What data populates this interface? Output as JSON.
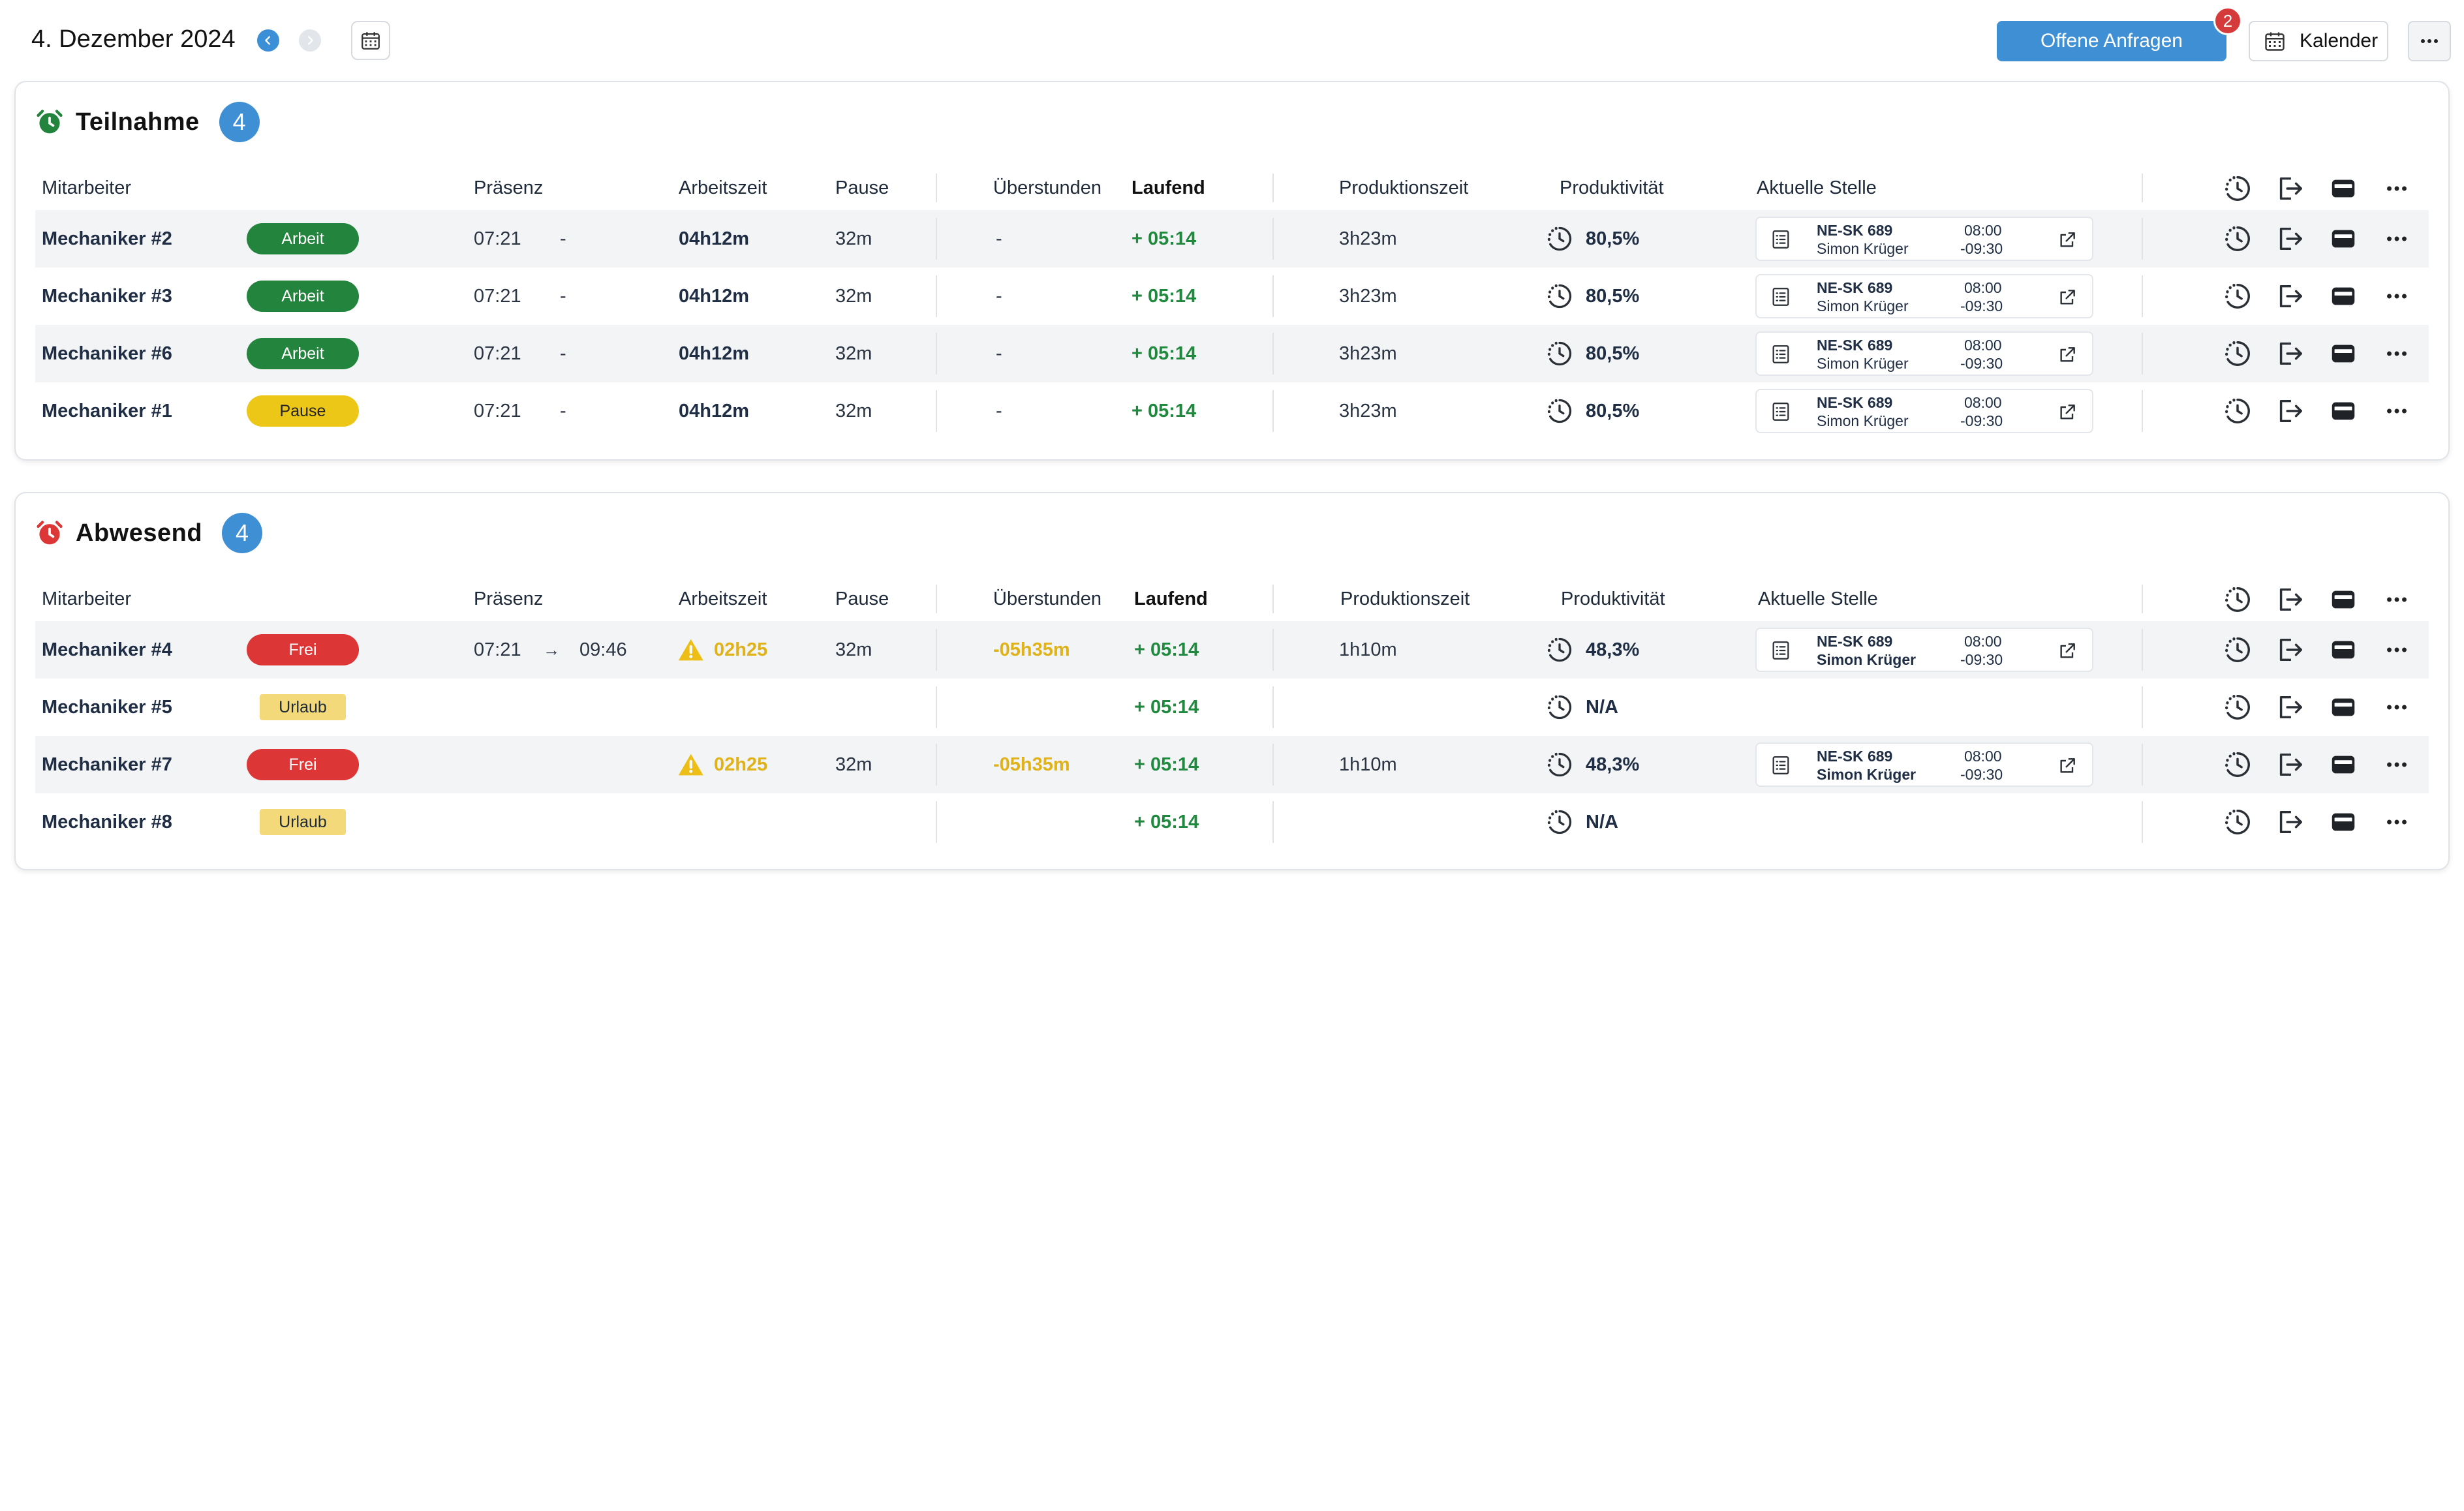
{
  "header": {
    "date_title": "4. Dezember 2024",
    "offene_anfragen_label": "Offene Anfragen",
    "offene_anfragen_count": "2",
    "kalender_label": "Kalender"
  },
  "columns": {
    "mitarbeiter": "Mitarbeiter",
    "praesenz": "Präsenz",
    "arbeitszeit": "Arbeitszeit",
    "pause": "Pause",
    "ueberstunden": "Überstunden",
    "laufend": "Laufend",
    "produktionszeit": "Produktionszeit",
    "produktivitaet": "Produktivität",
    "aktuelle_stelle": "Aktuelle Stelle"
  },
  "teilnahme": {
    "title": "Teilnahme",
    "count": "4",
    "rows": [
      {
        "name": "Mechaniker #2",
        "status": "Arbeit",
        "praesenz_start": "07:21",
        "praesenz_end": "-",
        "arbeitszeit": "04h12m",
        "pause": "32m",
        "ueberstunden": "-",
        "laufend": "+ 05:14",
        "produktionszeit": "3h23m",
        "produktivitaet": "80,5%",
        "stelle_code": "NE-SK 689",
        "stelle_person": "Simon Krüger",
        "stelle_from": "08:00",
        "stelle_to": "-09:30"
      },
      {
        "name": "Mechaniker #3",
        "status": "Arbeit",
        "praesenz_start": "07:21",
        "praesenz_end": "-",
        "arbeitszeit": "04h12m",
        "pause": "32m",
        "ueberstunden": "-",
        "laufend": "+ 05:14",
        "produktionszeit": "3h23m",
        "produktivitaet": "80,5%",
        "stelle_code": "NE-SK 689",
        "stelle_person": "Simon Krüger",
        "stelle_from": "08:00",
        "stelle_to": "-09:30"
      },
      {
        "name": "Mechaniker #6",
        "status": "Arbeit",
        "praesenz_start": "07:21",
        "praesenz_end": "-",
        "arbeitszeit": "04h12m",
        "pause": "32m",
        "ueberstunden": "-",
        "laufend": "+ 05:14",
        "produktionszeit": "3h23m",
        "produktivitaet": "80,5%",
        "stelle_code": "NE-SK 689",
        "stelle_person": "Simon Krüger",
        "stelle_from": "08:00",
        "stelle_to": "-09:30"
      },
      {
        "name": "Mechaniker #1",
        "status": "Pause",
        "praesenz_start": "07:21",
        "praesenz_end": "-",
        "arbeitszeit": "04h12m",
        "pause": "32m",
        "ueberstunden": "-",
        "laufend": "+ 05:14",
        "produktionszeit": "3h23m",
        "produktivitaet": "80,5%",
        "stelle_code": "NE-SK 689",
        "stelle_person": "Simon Krüger",
        "stelle_from": "08:00",
        "stelle_to": "-09:30"
      }
    ]
  },
  "abwesend": {
    "title": "Abwesend",
    "count": "4",
    "rows": [
      {
        "name": "Mechaniker #4",
        "status": "Frei",
        "praesenz_start": "07:21",
        "praesenz_end": "09:46",
        "arbeitszeit": "02h25",
        "pause": "32m",
        "ueberstunden": "-05h35m",
        "laufend": "+ 05:14",
        "produktionszeit": "1h10m",
        "produktivitaet": "48,3%",
        "stelle_code": "NE-SK 689",
        "stelle_person": "Simon Krüger",
        "stelle_from": "08:00",
        "stelle_to": "-09:30"
      },
      {
        "name": "Mechaniker #5",
        "status": "Urlaub",
        "laufend": "+ 05:14",
        "produktivitaet": "N/A"
      },
      {
        "name": "Mechaniker #7",
        "status": "Frei",
        "arbeitszeit": "02h25",
        "pause": "32m",
        "ueberstunden": "-05h35m",
        "laufend": "+ 05:14",
        "produktionszeit": "1h10m",
        "produktivitaet": "48,3%",
        "stelle_code": "NE-SK 689",
        "stelle_person": "Simon Krüger",
        "stelle_from": "08:00",
        "stelle_to": "-09:30"
      },
      {
        "name": "Mechaniker #8",
        "status": "Urlaub",
        "laufend": "+ 05:14",
        "produktivitaet": "N/A"
      }
    ]
  },
  "icons": {
    "prev": "chevron-left-icon",
    "next": "chevron-right-icon",
    "calendar": "calendar-icon",
    "more": "more-horizontal-icon",
    "teilnahme": "alarm-clock-green-icon",
    "abwesend": "alarm-clock-red-icon",
    "productivity": "timer-dashed-icon",
    "document": "document-list-icon",
    "external": "external-link-icon",
    "logout": "logout-icon",
    "wallet": "card-wallet-icon",
    "warning": "warning-triangle-icon"
  },
  "colors": {
    "accent_blue": "#3e8fd4",
    "arbeit_green": "#23853d",
    "pause_yellow": "#ecc718",
    "frei_red": "#dd3636",
    "urlaub_yellow": "#f3d979",
    "positive_text": "#1f8a3e",
    "warning_text": "#e0b21a"
  }
}
